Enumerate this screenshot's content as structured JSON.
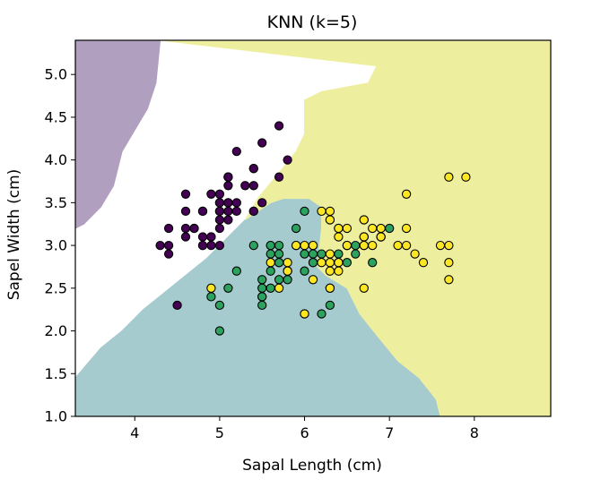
{
  "chart_data": {
    "type": "scatter",
    "title": "KNN (k=5)",
    "xlabel": "Sapal Length (cm)",
    "ylabel": "Sapel Width (cm)",
    "xlim": [
      3.3,
      8.9
    ],
    "ylim": [
      1.0,
      5.4
    ],
    "x_ticks": [
      4,
      5,
      6,
      7,
      8
    ],
    "y_ticks": [
      1.0,
      1.5,
      2.0,
      2.5,
      3.0,
      3.5,
      4.0,
      4.5,
      5.0
    ],
    "grid": false,
    "regions": [
      {
        "class": 0,
        "color": "#b19fc0",
        "polygon": [
          [
            3.3,
            5.4
          ],
          [
            4.3,
            5.4
          ],
          [
            4.3,
            5.4
          ],
          [
            4.25,
            4.9
          ],
          [
            4.15,
            4.6
          ],
          [
            3.85,
            4.1
          ],
          [
            3.75,
            3.7
          ],
          [
            3.6,
            3.45
          ],
          [
            3.4,
            3.25
          ],
          [
            3.1,
            3.1
          ],
          [
            2.8,
            2.85
          ],
          [
            2.6,
            2.6
          ],
          [
            2.45,
            2.3
          ],
          [
            2.15,
            2.0
          ],
          [
            1.85,
            1.75
          ],
          [
            1.6,
            1.5
          ],
          [
            1.45,
            1.3
          ]
        ]
      },
      {
        "class": 1,
        "color": "#a5cbcf",
        "polygon": [
          [
            3.3,
            1.45
          ],
          [
            3.3,
            1.0
          ],
          [
            7.6,
            1.0
          ],
          [
            7.55,
            1.2
          ],
          [
            7.35,
            1.45
          ],
          [
            7.1,
            1.65
          ],
          [
            6.85,
            1.95
          ],
          [
            6.65,
            2.2
          ],
          [
            6.5,
            2.5
          ],
          [
            6.25,
            2.65
          ],
          [
            6.15,
            2.75
          ],
          [
            6.2,
            3.2
          ],
          [
            6.2,
            3.45
          ],
          [
            6.05,
            3.55
          ],
          [
            5.9,
            3.55
          ],
          [
            5.75,
            3.55
          ],
          [
            5.6,
            3.5
          ],
          [
            5.45,
            3.4
          ],
          [
            5.3,
            3.3
          ],
          [
            5.1,
            3.1
          ],
          [
            4.85,
            2.85
          ],
          [
            4.6,
            2.65
          ],
          [
            4.35,
            2.45
          ],
          [
            4.1,
            2.25
          ],
          [
            3.85,
            2.0
          ],
          [
            3.6,
            1.8
          ]
        ]
      },
      {
        "class": 2,
        "color": "#eeef9e",
        "polygon": [
          [
            4.3,
            5.4
          ],
          [
            8.9,
            5.4
          ],
          [
            8.9,
            1.0
          ],
          [
            7.6,
            1.0
          ],
          [
            7.55,
            1.2
          ],
          [
            7.35,
            1.45
          ],
          [
            7.1,
            1.65
          ],
          [
            6.85,
            1.95
          ],
          [
            6.65,
            2.2
          ],
          [
            6.5,
            2.5
          ],
          [
            6.25,
            2.65
          ],
          [
            6.15,
            2.75
          ],
          [
            6.2,
            3.2
          ],
          [
            6.2,
            3.45
          ],
          [
            6.05,
            3.55
          ],
          [
            5.9,
            3.55
          ],
          [
            5.75,
            3.55
          ],
          [
            5.6,
            3.5
          ],
          [
            5.45,
            3.4
          ],
          [
            5.3,
            3.3
          ],
          [
            5.45,
            3.55
          ],
          [
            5.7,
            3.85
          ],
          [
            5.9,
            4.1
          ],
          [
            6.0,
            4.3
          ],
          [
            6.0,
            4.7
          ],
          [
            6.2,
            4.8
          ],
          [
            6.75,
            4.9
          ],
          [
            6.85,
            5.1
          ]
        ]
      }
    ],
    "series": [
      {
        "class": 0,
        "color": "#440154",
        "points": [
          [
            5.1,
            3.5
          ],
          [
            4.9,
            3.0
          ],
          [
            4.7,
            3.2
          ],
          [
            4.6,
            3.1
          ],
          [
            5.0,
            3.6
          ],
          [
            5.4,
            3.9
          ],
          [
            4.6,
            3.4
          ],
          [
            5.0,
            3.4
          ],
          [
            4.4,
            2.9
          ],
          [
            4.9,
            3.1
          ],
          [
            5.4,
            3.7
          ],
          [
            4.8,
            3.4
          ],
          [
            4.8,
            3.0
          ],
          [
            4.3,
            3.0
          ],
          [
            5.8,
            4.0
          ],
          [
            5.7,
            4.4
          ],
          [
            5.4,
            3.9
          ],
          [
            5.1,
            3.5
          ],
          [
            5.7,
            3.8
          ],
          [
            5.1,
            3.8
          ],
          [
            5.4,
            3.4
          ],
          [
            5.1,
            3.7
          ],
          [
            4.6,
            3.6
          ],
          [
            5.1,
            3.3
          ],
          [
            4.8,
            3.4
          ],
          [
            5.0,
            3.0
          ],
          [
            5.0,
            3.4
          ],
          [
            5.2,
            3.5
          ],
          [
            5.2,
            3.4
          ],
          [
            4.7,
            3.2
          ],
          [
            4.8,
            3.1
          ],
          [
            5.4,
            3.4
          ],
          [
            5.2,
            4.1
          ],
          [
            5.5,
            4.2
          ],
          [
            4.9,
            3.1
          ],
          [
            5.0,
            3.2
          ],
          [
            5.5,
            3.5
          ],
          [
            4.9,
            3.6
          ],
          [
            4.4,
            3.0
          ],
          [
            5.1,
            3.4
          ],
          [
            5.0,
            3.5
          ],
          [
            4.5,
            2.3
          ],
          [
            4.4,
            3.2
          ],
          [
            5.0,
            3.5
          ],
          [
            5.1,
            3.8
          ],
          [
            4.8,
            3.0
          ],
          [
            5.1,
            3.8
          ],
          [
            4.6,
            3.2
          ],
          [
            5.3,
            3.7
          ],
          [
            5.0,
            3.3
          ]
        ]
      },
      {
        "class": 1,
        "color": "#2ca25f",
        "points": [
          [
            7.0,
            3.2
          ],
          [
            6.4,
            3.2
          ],
          [
            6.9,
            3.1
          ],
          [
            5.5,
            2.3
          ],
          [
            6.5,
            2.8
          ],
          [
            5.7,
            2.8
          ],
          [
            6.3,
            3.3
          ],
          [
            4.9,
            2.4
          ],
          [
            6.6,
            2.9
          ],
          [
            5.2,
            2.7
          ],
          [
            5.0,
            2.0
          ],
          [
            5.9,
            3.0
          ],
          [
            6.0,
            2.2
          ],
          [
            6.1,
            2.9
          ],
          [
            5.6,
            2.9
          ],
          [
            6.7,
            3.1
          ],
          [
            5.6,
            3.0
          ],
          [
            5.8,
            2.7
          ],
          [
            6.2,
            2.2
          ],
          [
            5.6,
            2.5
          ],
          [
            5.9,
            3.2
          ],
          [
            6.1,
            2.8
          ],
          [
            6.3,
            2.5
          ],
          [
            6.1,
            2.8
          ],
          [
            6.4,
            2.9
          ],
          [
            6.6,
            3.0
          ],
          [
            6.8,
            2.8
          ],
          [
            6.7,
            3.0
          ],
          [
            6.0,
            2.9
          ],
          [
            5.7,
            2.6
          ],
          [
            5.5,
            2.4
          ],
          [
            5.5,
            2.4
          ],
          [
            5.8,
            2.7
          ],
          [
            6.0,
            2.7
          ],
          [
            5.4,
            3.0
          ],
          [
            6.0,
            3.4
          ],
          [
            6.7,
            3.1
          ],
          [
            6.3,
            2.3
          ],
          [
            5.6,
            3.0
          ],
          [
            5.5,
            2.5
          ],
          [
            5.5,
            2.6
          ],
          [
            6.1,
            3.0
          ],
          [
            5.8,
            2.6
          ],
          [
            5.0,
            2.3
          ],
          [
            5.6,
            2.7
          ],
          [
            5.7,
            3.0
          ],
          [
            5.7,
            2.9
          ],
          [
            6.2,
            2.9
          ],
          [
            5.1,
            2.5
          ],
          [
            5.7,
            2.8
          ]
        ]
      },
      {
        "class": 2,
        "color": "#fde725",
        "points": [
          [
            6.3,
            3.3
          ],
          [
            5.8,
            2.7
          ],
          [
            7.1,
            3.0
          ],
          [
            6.3,
            2.9
          ],
          [
            6.5,
            3.0
          ],
          [
            7.6,
            3.0
          ],
          [
            4.9,
            2.5
          ],
          [
            7.3,
            2.9
          ],
          [
            6.7,
            2.5
          ],
          [
            7.2,
            3.6
          ],
          [
            6.5,
            3.2
          ],
          [
            6.4,
            2.7
          ],
          [
            6.8,
            3.0
          ],
          [
            5.7,
            2.5
          ],
          [
            5.8,
            2.8
          ],
          [
            6.4,
            3.2
          ],
          [
            6.5,
            3.0
          ],
          [
            7.7,
            3.8
          ],
          [
            7.7,
            2.6
          ],
          [
            6.0,
            2.2
          ],
          [
            6.9,
            3.2
          ],
          [
            5.6,
            2.8
          ],
          [
            7.7,
            2.8
          ],
          [
            6.3,
            2.7
          ],
          [
            6.7,
            3.3
          ],
          [
            7.2,
            3.2
          ],
          [
            6.2,
            2.8
          ],
          [
            6.1,
            3.0
          ],
          [
            6.4,
            2.8
          ],
          [
            7.2,
            3.0
          ],
          [
            7.4,
            2.8
          ],
          [
            7.9,
            3.8
          ],
          [
            6.4,
            2.8
          ],
          [
            6.3,
            2.8
          ],
          [
            6.1,
            2.6
          ],
          [
            7.7,
            3.0
          ],
          [
            6.3,
            3.4
          ],
          [
            6.4,
            3.1
          ],
          [
            6.0,
            3.0
          ],
          [
            6.9,
            3.1
          ],
          [
            6.7,
            3.1
          ],
          [
            6.9,
            3.1
          ],
          [
            5.8,
            2.7
          ],
          [
            6.8,
            3.2
          ],
          [
            6.7,
            3.3
          ],
          [
            6.7,
            3.0
          ],
          [
            6.3,
            2.5
          ],
          [
            6.5,
            3.0
          ],
          [
            6.2,
            3.4
          ],
          [
            5.9,
            3.0
          ]
        ]
      }
    ]
  }
}
